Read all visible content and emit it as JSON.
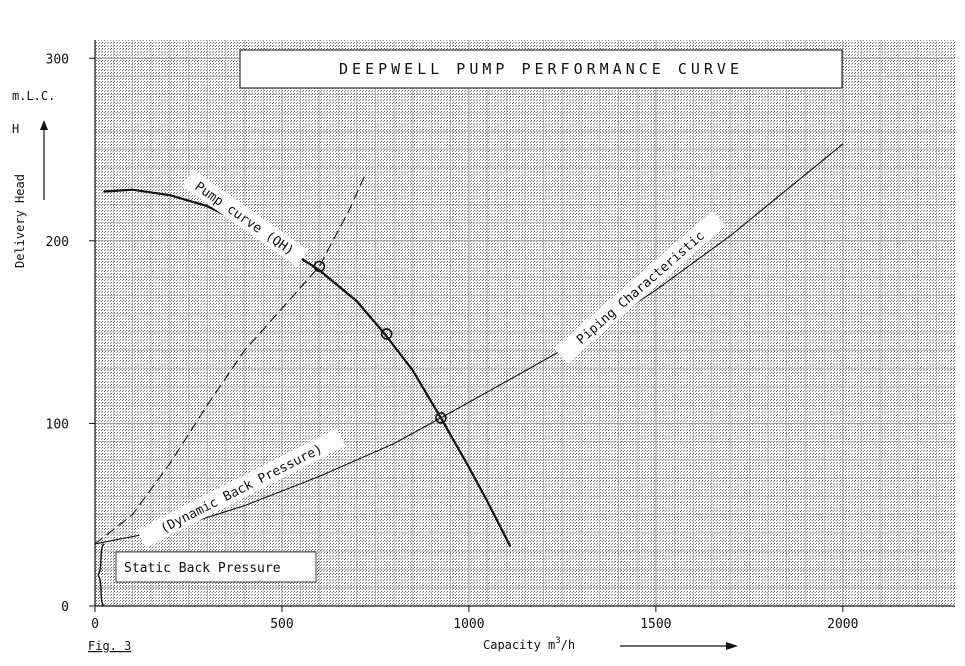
{
  "figure_label": "Fig. 3",
  "chart_data": {
    "type": "line",
    "title": "DEEPWELL PUMP PERFORMANCE CURVE",
    "xlabel": "Capacity m3/h",
    "xlabel_parts": {
      "main": "Capacity m",
      "sup": "3",
      "tail": "/h"
    },
    "ylabel": "Delivery Head",
    "ylabel_unit": "m.L.C.",
    "ylabel_symbol": "H",
    "xlim": [
      0,
      2300
    ],
    "ylim": [
      0,
      310
    ],
    "x_ticks": [
      0,
      500,
      1000,
      1500,
      2000
    ],
    "y_ticks": [
      0,
      100,
      200,
      300
    ],
    "grid": true,
    "colors": {
      "background_grid": "#9a9a9a",
      "curve": "#111111"
    },
    "series": [
      {
        "label_text": "Pump curve (QH)",
        "style": "solid-thick",
        "points": [
          [
            25,
            227
          ],
          [
            100,
            228
          ],
          [
            200,
            225
          ],
          [
            300,
            219
          ],
          [
            400,
            209
          ],
          [
            500,
            197
          ],
          [
            600,
            184
          ],
          [
            700,
            167
          ],
          [
            775,
            149
          ],
          [
            850,
            129
          ],
          [
            925,
            103
          ],
          [
            1000,
            76
          ],
          [
            1050,
            57
          ],
          [
            1110,
            33
          ]
        ]
      },
      {
        "label_text": "Piping Characteristic",
        "style": "solid-thin",
        "points": [
          [
            0,
            34
          ],
          [
            200,
            42
          ],
          [
            400,
            55
          ],
          [
            600,
            71
          ],
          [
            800,
            89
          ],
          [
            925,
            103
          ],
          [
            1100,
            123
          ],
          [
            1300,
            146
          ],
          [
            1500,
            173
          ],
          [
            1700,
            203
          ],
          [
            1850,
            228
          ],
          [
            2000,
            253
          ]
        ]
      },
      {
        "label_text": "(Dynamic Back Pressure)",
        "style": "dashed",
        "points": [
          [
            0,
            34
          ],
          [
            100,
            50
          ],
          [
            200,
            78
          ],
          [
            300,
            110
          ],
          [
            400,
            140
          ],
          [
            500,
            163
          ],
          [
            600,
            186
          ],
          [
            680,
            217
          ],
          [
            720,
            235
          ]
        ]
      }
    ],
    "marked_points": [
      [
        600,
        186
      ],
      [
        780,
        149
      ],
      [
        925,
        103
      ]
    ],
    "annotations": {
      "static_back_pressure": "Static Back Pressure",
      "static_range": [
        0,
        34
      ]
    }
  }
}
